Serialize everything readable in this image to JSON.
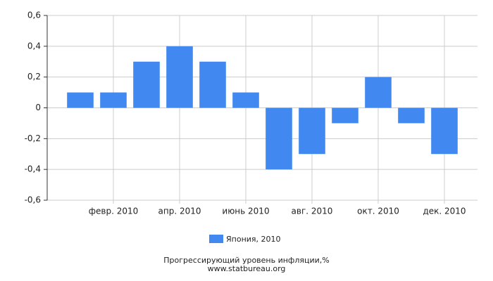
{
  "chart_data": {
    "type": "bar",
    "title": "Прогрессирующий уровень инфляции,%",
    "source": "www.statbureau.org",
    "categories": [
      null,
      "февр. 2010",
      null,
      "апр. 2010",
      null,
      "июнь 2010",
      null,
      "авг. 2010",
      null,
      "окт. 2010",
      null,
      "дек. 2010"
    ],
    "series": [
      {
        "name": "Япония, 2010",
        "color": "#4189f0",
        "values": [
          0.1,
          0.1,
          0.3,
          0.4,
          0.3,
          0.1,
          -0.4,
          -0.3,
          -0.1,
          0.2,
          -0.1,
          -0.3
        ]
      }
    ],
    "ylim": [
      -0.6,
      0.6
    ],
    "yticks": [
      {
        "value": -0.6,
        "label": "-0,6"
      },
      {
        "value": -0.4,
        "label": "-0,4"
      },
      {
        "value": -0.2,
        "label": "-0,2"
      },
      0,
      {
        "value": 0.2,
        "label": "0,2"
      },
      {
        "value": 0.4,
        "label": "0,4"
      },
      {
        "value": 0.6,
        "label": "0,6"
      }
    ],
    "grid": true
  }
}
